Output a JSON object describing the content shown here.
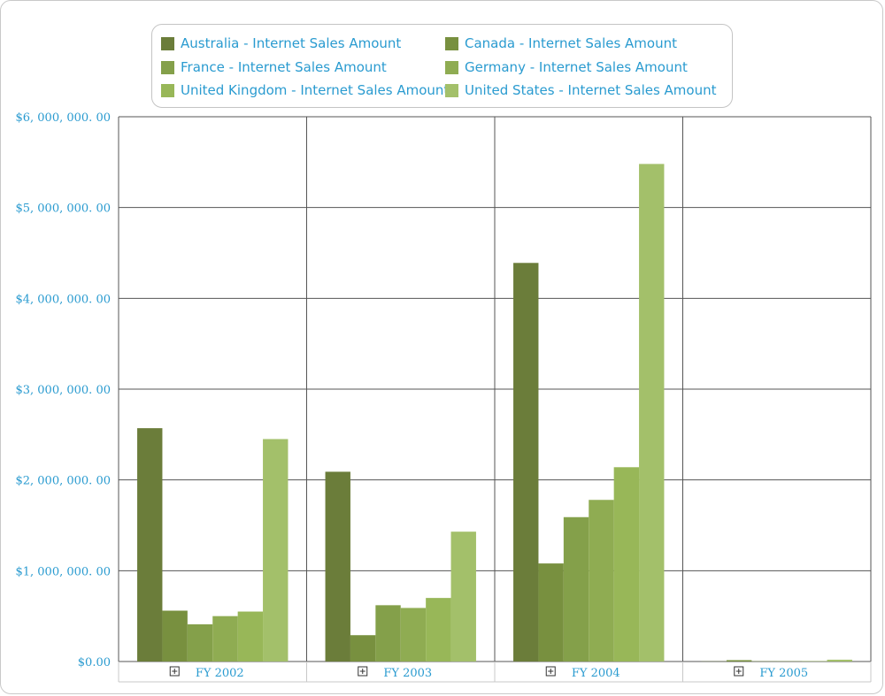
{
  "colors": {
    "text": "#2a9bd0",
    "grid": "#555555",
    "series": [
      "#6b7d3a",
      "#78903f",
      "#84a04a",
      "#8fac52",
      "#98b758",
      "#a3c06a"
    ]
  },
  "chart_data": {
    "type": "bar",
    "title": "",
    "xlabel": "",
    "ylabel": "",
    "ylim": [
      0,
      6000000
    ],
    "yticks": [
      0,
      1000000,
      2000000,
      3000000,
      4000000,
      5000000,
      6000000
    ],
    "ytick_labels": [
      "$0.00",
      "$1, 000, 000. 00",
      "$2, 000, 000. 00",
      "$3, 000, 000. 00",
      "$4, 000, 000. 00",
      "$5, 000, 000. 00",
      "$6, 000, 000. 00"
    ],
    "categories": [
      "FY 2002",
      "FY 2003",
      "FY 2004",
      "FY 2005"
    ],
    "legend_position": "top",
    "grid": true,
    "series": [
      {
        "name": "Australia - Internet Sales Amount",
        "values": [
          2570000,
          2090000,
          4390000,
          2000
        ]
      },
      {
        "name": "Canada - Internet Sales Amount",
        "values": [
          560000,
          290000,
          1080000,
          15000
        ]
      },
      {
        "name": "France - Internet Sales Amount",
        "values": [
          410000,
          620000,
          1590000,
          3000
        ]
      },
      {
        "name": "Germany - Internet Sales Amount",
        "values": [
          500000,
          590000,
          1780000,
          3000
        ]
      },
      {
        "name": "United Kingdom - Internet Sales Amount",
        "values": [
          550000,
          700000,
          2140000,
          4000
        ]
      },
      {
        "name": "United States - Internet Sales Amount",
        "values": [
          2450000,
          1430000,
          5480000,
          20000
        ]
      }
    ]
  }
}
